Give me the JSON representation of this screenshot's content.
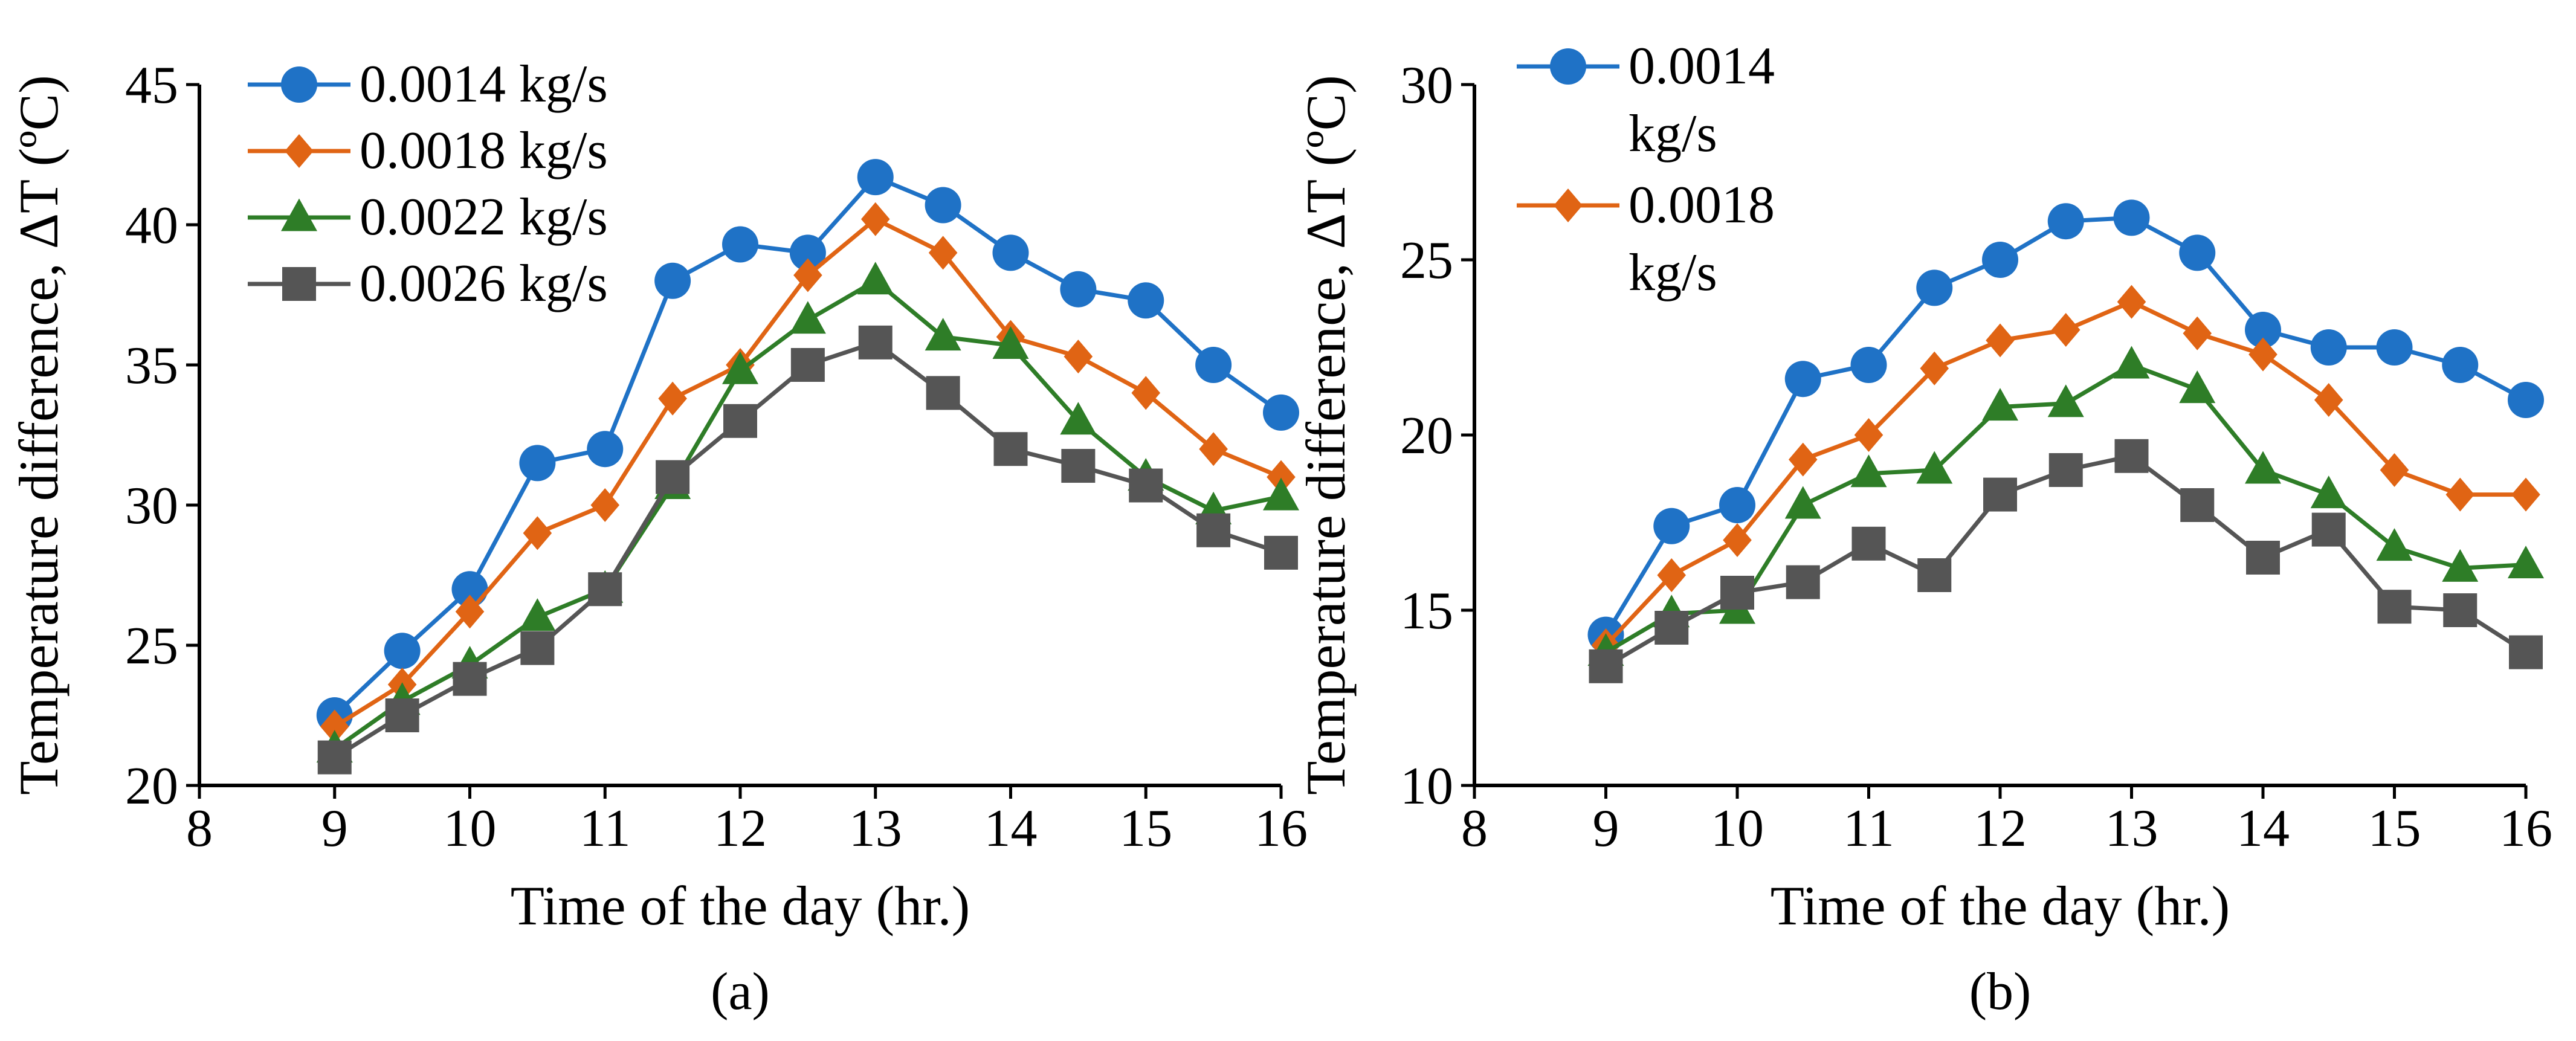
{
  "colors": {
    "s1": "#1f72c6",
    "s2": "#e06414",
    "s3": "#2e7d27",
    "s4": "#555555"
  },
  "chart_data": [
    {
      "type": "line",
      "panel_label": "(a)",
      "xlabel": "Time of the day (hr.)",
      "ylabel": "Temperature difference, ΔT (ºC)",
      "xlim": [
        8,
        16
      ],
      "ylim": [
        20,
        45
      ],
      "xticks": [
        8,
        9,
        10,
        11,
        12,
        13,
        14,
        15,
        16
      ],
      "yticks": [
        20,
        25,
        30,
        35,
        40,
        45
      ],
      "legend_position": "top-left",
      "x": [
        9,
        9.5,
        10,
        10.5,
        11,
        11.5,
        12,
        12.5,
        13,
        13.5,
        14,
        14.5,
        15,
        15.5,
        16
      ],
      "series": [
        {
          "name": "0.0014 kg/s",
          "marker": "circle",
          "color": "#1f72c6",
          "values": [
            22.5,
            24.8,
            27,
            31.5,
            32,
            38,
            39.3,
            39,
            41.7,
            40.7,
            39,
            37.7,
            37.3,
            35,
            33.3
          ]
        },
        {
          "name": "0.0018 kg/s",
          "marker": "diamond",
          "color": "#e06414",
          "values": [
            22.1,
            23.6,
            26.2,
            29,
            30,
            33.8,
            35,
            38.2,
            40.2,
            39,
            36,
            35.3,
            34,
            32,
            31
          ]
        },
        {
          "name": "0.0022 kg/s",
          "marker": "triangle",
          "color": "#2e7d27",
          "values": [
            21.3,
            23,
            24.3,
            26,
            27,
            30.7,
            34.8,
            36.6,
            38,
            36,
            35.7,
            33,
            31,
            29.8,
            30.3
          ]
        },
        {
          "name": "0.0026 kg/s",
          "marker": "square",
          "color": "#555555",
          "values": [
            21,
            22.5,
            23.8,
            24.9,
            27,
            31,
            33,
            35,
            35.8,
            34,
            32,
            31.4,
            30.7,
            29.1,
            28.3
          ]
        }
      ]
    },
    {
      "type": "line",
      "panel_label": "(b)",
      "xlabel": "Time of the day (hr.)",
      "ylabel": "Temperature difference, ΔT (ºC)",
      "xlim": [
        8,
        16
      ],
      "ylim": [
        10,
        30
      ],
      "xticks": [
        8,
        9,
        10,
        11,
        12,
        13,
        14,
        15,
        16
      ],
      "yticks": [
        10,
        15,
        20,
        25,
        30
      ],
      "legend_position": "top-left",
      "x": [
        9,
        9.5,
        10,
        10.5,
        11,
        11.5,
        12,
        12.5,
        13,
        13.5,
        14,
        14.5,
        15,
        15.5,
        16
      ],
      "series": [
        {
          "name": "0.0014 kg/s",
          "legend_lines": [
            "0.0014",
            "kg/s"
          ],
          "marker": "circle",
          "color": "#1f72c6",
          "values": [
            14.3,
            17.4,
            18,
            21.6,
            22,
            24.2,
            25,
            26.1,
            26.2,
            25.2,
            23,
            22.5,
            22.5,
            22,
            21
          ]
        },
        {
          "name": "0.0018 kg/s",
          "legend_lines": [
            "0.0018",
            "kg/s"
          ],
          "marker": "diamond",
          "color": "#e06414",
          "values": [
            14,
            16,
            17,
            19.3,
            20,
            21.9,
            22.7,
            23,
            23.8,
            22.9,
            22.3,
            21,
            19,
            18.3,
            18.3
          ]
        },
        {
          "name": "0.0022 kg/s",
          "marker": "triangle",
          "color": "#2e7d27",
          "legend_hidden": true,
          "values": [
            13.8,
            14.9,
            15,
            18,
            18.9,
            19,
            20.8,
            20.9,
            22,
            21.3,
            19,
            18.3,
            16.8,
            16.2,
            16.3
          ]
        },
        {
          "name": "0.0026 kg/s",
          "marker": "square",
          "color": "#555555",
          "legend_hidden": true,
          "values": [
            13.4,
            14.5,
            15.5,
            15.8,
            16.9,
            16,
            18.3,
            19,
            19.4,
            18,
            16.5,
            17.3,
            15.1,
            15,
            13.8
          ]
        }
      ]
    }
  ]
}
